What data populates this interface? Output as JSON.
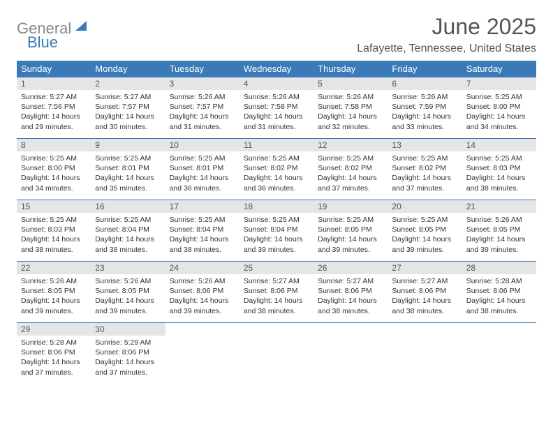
{
  "logo": {
    "general": "General",
    "blue": "Blue"
  },
  "title": "June 2025",
  "subtitle": "Lafayette, Tennessee, United States",
  "colors": {
    "accent": "#3a7ab8",
    "daynum_bg": "#e5e5e5",
    "header_text": "#555555"
  },
  "weekdays": [
    "Sunday",
    "Monday",
    "Tuesday",
    "Wednesday",
    "Thursday",
    "Friday",
    "Saturday"
  ],
  "days": [
    {
      "n": "1",
      "sr": "5:27 AM",
      "ss": "7:56 PM",
      "dl": "14 hours and 29 minutes."
    },
    {
      "n": "2",
      "sr": "5:27 AM",
      "ss": "7:57 PM",
      "dl": "14 hours and 30 minutes."
    },
    {
      "n": "3",
      "sr": "5:26 AM",
      "ss": "7:57 PM",
      "dl": "14 hours and 31 minutes."
    },
    {
      "n": "4",
      "sr": "5:26 AM",
      "ss": "7:58 PM",
      "dl": "14 hours and 31 minutes."
    },
    {
      "n": "5",
      "sr": "5:26 AM",
      "ss": "7:58 PM",
      "dl": "14 hours and 32 minutes."
    },
    {
      "n": "6",
      "sr": "5:26 AM",
      "ss": "7:59 PM",
      "dl": "14 hours and 33 minutes."
    },
    {
      "n": "7",
      "sr": "5:25 AM",
      "ss": "8:00 PM",
      "dl": "14 hours and 34 minutes."
    },
    {
      "n": "8",
      "sr": "5:25 AM",
      "ss": "8:00 PM",
      "dl": "14 hours and 34 minutes."
    },
    {
      "n": "9",
      "sr": "5:25 AM",
      "ss": "8:01 PM",
      "dl": "14 hours and 35 minutes."
    },
    {
      "n": "10",
      "sr": "5:25 AM",
      "ss": "8:01 PM",
      "dl": "14 hours and 36 minutes."
    },
    {
      "n": "11",
      "sr": "5:25 AM",
      "ss": "8:02 PM",
      "dl": "14 hours and 36 minutes."
    },
    {
      "n": "12",
      "sr": "5:25 AM",
      "ss": "8:02 PM",
      "dl": "14 hours and 37 minutes."
    },
    {
      "n": "13",
      "sr": "5:25 AM",
      "ss": "8:02 PM",
      "dl": "14 hours and 37 minutes."
    },
    {
      "n": "14",
      "sr": "5:25 AM",
      "ss": "8:03 PM",
      "dl": "14 hours and 38 minutes."
    },
    {
      "n": "15",
      "sr": "5:25 AM",
      "ss": "8:03 PM",
      "dl": "14 hours and 38 minutes."
    },
    {
      "n": "16",
      "sr": "5:25 AM",
      "ss": "8:04 PM",
      "dl": "14 hours and 38 minutes."
    },
    {
      "n": "17",
      "sr": "5:25 AM",
      "ss": "8:04 PM",
      "dl": "14 hours and 38 minutes."
    },
    {
      "n": "18",
      "sr": "5:25 AM",
      "ss": "8:04 PM",
      "dl": "14 hours and 39 minutes."
    },
    {
      "n": "19",
      "sr": "5:25 AM",
      "ss": "8:05 PM",
      "dl": "14 hours and 39 minutes."
    },
    {
      "n": "20",
      "sr": "5:25 AM",
      "ss": "8:05 PM",
      "dl": "14 hours and 39 minutes."
    },
    {
      "n": "21",
      "sr": "5:26 AM",
      "ss": "8:05 PM",
      "dl": "14 hours and 39 minutes."
    },
    {
      "n": "22",
      "sr": "5:26 AM",
      "ss": "8:05 PM",
      "dl": "14 hours and 39 minutes."
    },
    {
      "n": "23",
      "sr": "5:26 AM",
      "ss": "8:05 PM",
      "dl": "14 hours and 39 minutes."
    },
    {
      "n": "24",
      "sr": "5:26 AM",
      "ss": "8:06 PM",
      "dl": "14 hours and 39 minutes."
    },
    {
      "n": "25",
      "sr": "5:27 AM",
      "ss": "8:06 PM",
      "dl": "14 hours and 38 minutes."
    },
    {
      "n": "26",
      "sr": "5:27 AM",
      "ss": "8:06 PM",
      "dl": "14 hours and 38 minutes."
    },
    {
      "n": "27",
      "sr": "5:27 AM",
      "ss": "8:06 PM",
      "dl": "14 hours and 38 minutes."
    },
    {
      "n": "28",
      "sr": "5:28 AM",
      "ss": "8:06 PM",
      "dl": "14 hours and 38 minutes."
    },
    {
      "n": "29",
      "sr": "5:28 AM",
      "ss": "8:06 PM",
      "dl": "14 hours and 37 minutes."
    },
    {
      "n": "30",
      "sr": "5:29 AM",
      "ss": "8:06 PM",
      "dl": "14 hours and 37 minutes."
    }
  ],
  "labels": {
    "sunrise": "Sunrise: ",
    "sunset": "Sunset: ",
    "daylight": "Daylight: "
  }
}
